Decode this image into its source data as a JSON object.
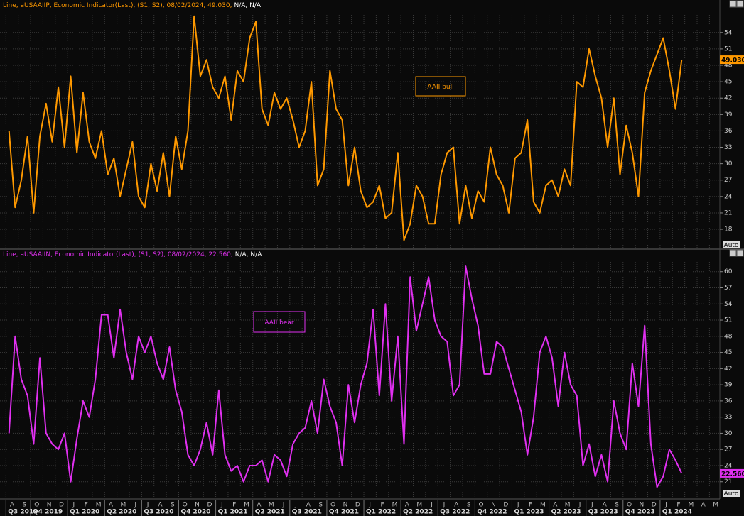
{
  "x_axis": {
    "months": [
      "A",
      "S",
      "O",
      "N",
      "D",
      "J",
      "F",
      "M",
      "A",
      "M",
      "J",
      "J",
      "A",
      "S",
      "O",
      "N",
      "D",
      "J",
      "F",
      "M",
      "A",
      "M",
      "J",
      "J",
      "A",
      "S",
      "O",
      "N",
      "D",
      "J",
      "F",
      "M",
      "A",
      "M",
      "J",
      "J",
      "A",
      "S",
      "O",
      "N",
      "D",
      "J",
      "F",
      "M",
      "A",
      "M",
      "J",
      "J",
      "A",
      "S",
      "O",
      "N",
      "D",
      "J",
      "F",
      "M",
      "A",
      "M"
    ],
    "quarters": [
      "Q3 2019",
      "Q4 2019",
      "Q1 2020",
      "Q2 2020",
      "Q3 2020",
      "Q4 2020",
      "Q1 2021",
      "Q2 2021",
      "Q3 2021",
      "Q4 2021",
      "Q1 2022",
      "Q2 2022",
      "Q3 2022",
      "Q4 2022",
      "Q1 2023",
      "Q2 2023",
      "Q3 2023",
      "Q4 2023",
      "Q1 2024"
    ]
  },
  "chart_data": [
    {
      "type": "line",
      "header": "Line, aUSAAIIP, Economic Indicator(Last), (S1, S2), 08/02/2024, 49.030,",
      "header_extra": "N/A, N/A",
      "annotation": "AAII bull",
      "last_value_label": "49.030",
      "scale_label": "Auto",
      "ylim": [
        14.5,
        58
      ],
      "yticks": [
        18,
        21,
        24,
        27,
        30,
        33,
        36,
        39,
        42,
        45,
        48,
        51,
        54
      ],
      "grid": true,
      "series": [
        {
          "name": "aUSAAIIP",
          "color": "#ff9900",
          "values": [
            36,
            22,
            27,
            35,
            21,
            35,
            41,
            34,
            44,
            33,
            46,
            32,
            43,
            34,
            31,
            36,
            28,
            31,
            24,
            29,
            34,
            24,
            22,
            30,
            25,
            32,
            24,
            35,
            29,
            36,
            57,
            46,
            49,
            44,
            42,
            46,
            38,
            47,
            45,
            53,
            56,
            40,
            37,
            43,
            40,
            42,
            38,
            33,
            36,
            45,
            26,
            29,
            47,
            40,
            38,
            26,
            33,
            25,
            22,
            23,
            26,
            20,
            21,
            32,
            16,
            19,
            26,
            24,
            19,
            19,
            28,
            32,
            33,
            19,
            26,
            20,
            25,
            23,
            33,
            28,
            26,
            21,
            31,
            32,
            38,
            23,
            21,
            26,
            27,
            24,
            29,
            26,
            45,
            44,
            51,
            46,
            42,
            33,
            42,
            28,
            37,
            32,
            24,
            43,
            47,
            50,
            53,
            47,
            40,
            49.03
          ]
        }
      ]
    },
    {
      "type": "line",
      "header": "Line, aUSAAIIN, Economic Indicator(Last), (S1, S2), 08/02/2024, 22.560,",
      "header_extra": "N/A, N/A",
      "annotation": "AAII bear",
      "last_value_label": "22.560",
      "scale_label": "Auto",
      "ylim": [
        18.2,
        62.6
      ],
      "yticks": [
        21,
        24,
        27,
        30,
        33,
        36,
        39,
        42,
        45,
        48,
        51,
        54,
        57,
        60
      ],
      "grid": true,
      "series": [
        {
          "name": "aUSAAIIN",
          "color": "#e030f0",
          "values": [
            30,
            48,
            40,
            37,
            28,
            44,
            30,
            28,
            27,
            30,
            21,
            29,
            36,
            33,
            40,
            52,
            52,
            44,
            53,
            45,
            40,
            48,
            45,
            48,
            43,
            40,
            46,
            38,
            34,
            26,
            24,
            27,
            32,
            26,
            38,
            26,
            23,
            24,
            21,
            24,
            24,
            25,
            21,
            26,
            25,
            22,
            28,
            30,
            31,
            36,
            30,
            40,
            35,
            32,
            24,
            39,
            32,
            39,
            43,
            53,
            37,
            54,
            36,
            48,
            28,
            59,
            49,
            54,
            59,
            51,
            48,
            47,
            37,
            39,
            61,
            55,
            50,
            41,
            41,
            47,
            46,
            42,
            38,
            34,
            26,
            33,
            45,
            48,
            44,
            35,
            45,
            39,
            37,
            24,
            28,
            22,
            26,
            21,
            36,
            30,
            27,
            43,
            35,
            50,
            28,
            20,
            22,
            27,
            25,
            22.56
          ]
        }
      ]
    }
  ]
}
